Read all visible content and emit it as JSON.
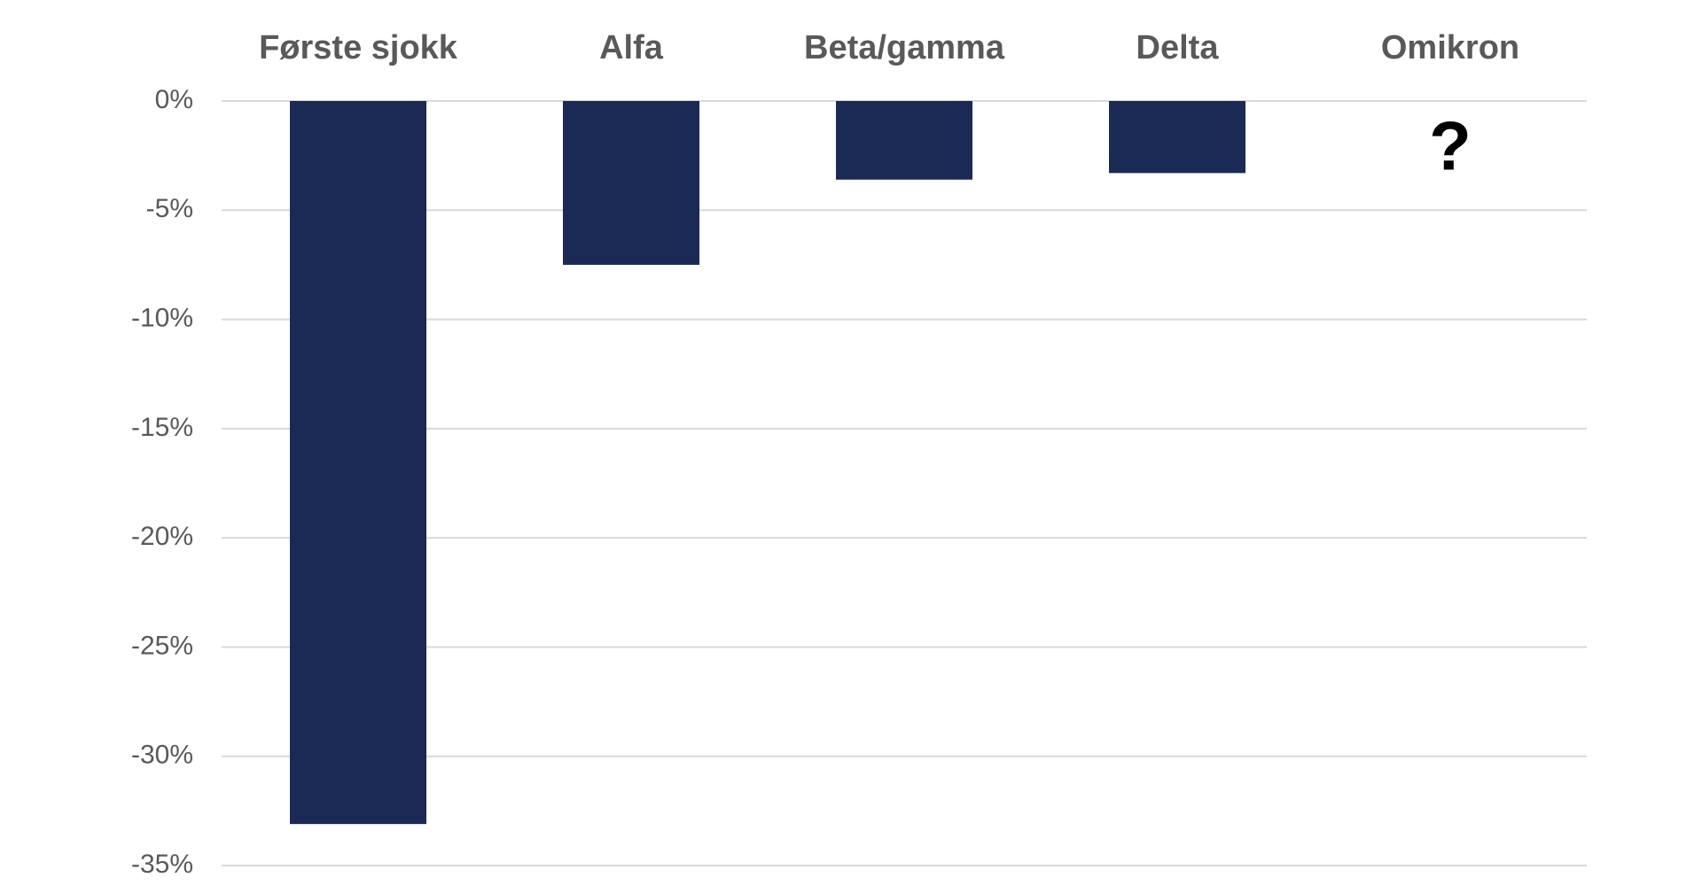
{
  "chart_data": {
    "type": "bar",
    "categories": [
      "Første sjokk",
      "Alfa",
      "Beta/gamma",
      "Delta",
      "Omikron"
    ],
    "values": [
      -33.1,
      -7.5,
      -3.6,
      -3.3,
      null
    ],
    "ylim": [
      -35,
      0
    ],
    "yticks": [
      0,
      -5,
      -10,
      -15,
      -20,
      -25,
      -30,
      -35
    ],
    "ytick_labels": [
      "0%",
      "-5%",
      "-10%",
      "-15%",
      "-20%",
      "-25%",
      "-30%",
      "-35%"
    ],
    "category_axis_position": "top",
    "grid": true,
    "bar_color": "#1b2a55",
    "annotations": [
      {
        "category": "Omikron",
        "text": "?"
      }
    ]
  }
}
